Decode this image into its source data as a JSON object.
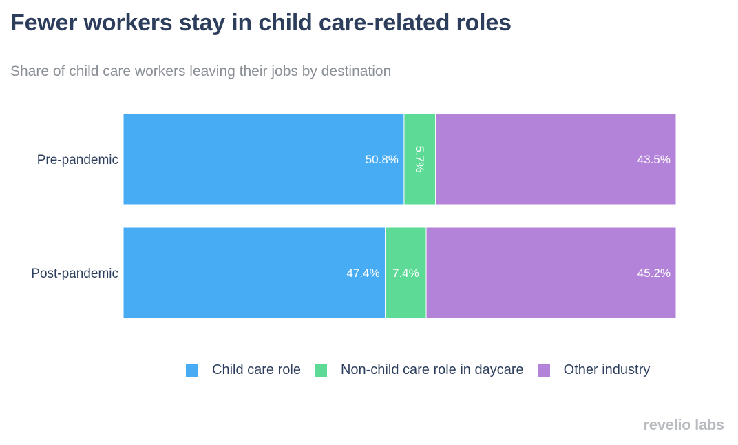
{
  "chart_data": {
    "type": "bar",
    "orientation": "horizontal",
    "stacked": true,
    "title": "Fewer workers stay in child care-related roles",
    "subtitle": "Share of child care workers leaving their jobs by destination",
    "categories": [
      "Pre-pandemic",
      "Post-pandemic"
    ],
    "series": [
      {
        "name": "Child care role",
        "color": "#48acf4",
        "values": [
          50.8,
          47.4
        ],
        "labels": [
          "50.8%",
          "47.4%"
        ]
      },
      {
        "name": "Non-child care role in daycare",
        "color": "#5ddb96",
        "values": [
          5.7,
          7.4
        ],
        "labels": [
          "5.7%",
          "7.4%"
        ]
      },
      {
        "name": "Other industry",
        "color": "#b383d9",
        "values": [
          43.5,
          45.2
        ],
        "labels": [
          "43.5%",
          "45.2%"
        ]
      }
    ],
    "xlim": [
      0,
      100
    ],
    "grid": false,
    "legend_position": "bottom"
  },
  "brand": "revelio labs"
}
